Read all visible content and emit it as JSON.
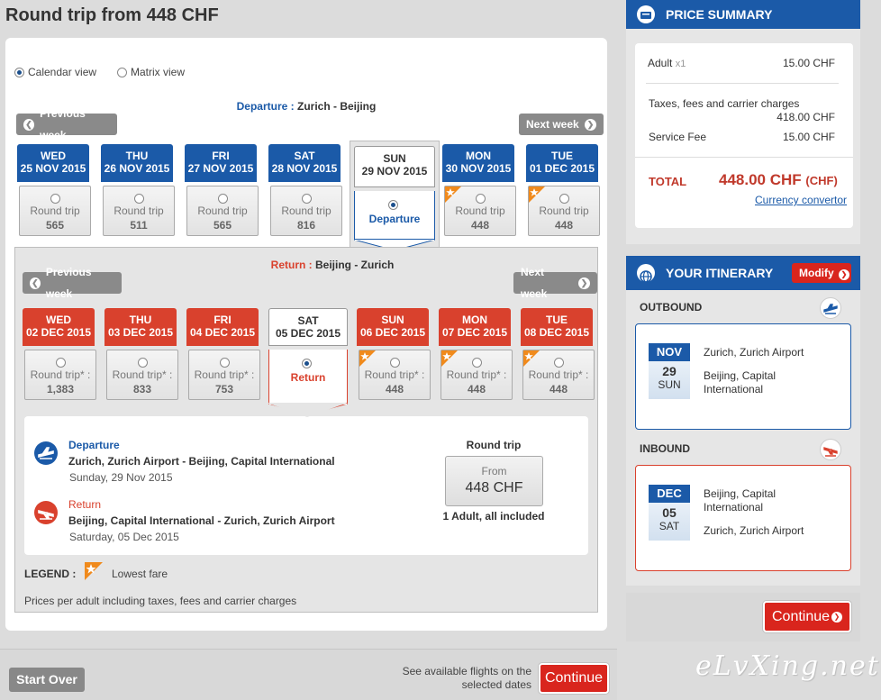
{
  "page_title": "Round trip from 448 CHF",
  "views": {
    "calendar": "Calendar view",
    "matrix": "Matrix view"
  },
  "departure": {
    "label": "Departure :",
    "route": "Zurich - Beijing",
    "prev": "Previous week",
    "next": "Next week",
    "days": [
      {
        "dow": "WED",
        "date": "25 NOV 2015",
        "type": "Round trip",
        "price": "565",
        "star": false
      },
      {
        "dow": "THU",
        "date": "26 NOV 2015",
        "type": "Round trip",
        "price": "511",
        "star": false
      },
      {
        "dow": "FRI",
        "date": "27 NOV 2015",
        "type": "Round trip",
        "price": "565",
        "star": false
      },
      {
        "dow": "SAT",
        "date": "28 NOV 2015",
        "type": "Round trip",
        "price": "816",
        "star": false
      },
      {
        "dow": "SUN",
        "date": "29 NOV 2015",
        "type": "Departure",
        "price": "",
        "star": false,
        "selected": true
      },
      {
        "dow": "MON",
        "date": "30 NOV 2015",
        "type": "Round trip",
        "price": "448",
        "star": true
      },
      {
        "dow": "TUE",
        "date": "01 DEC 2015",
        "type": "Round trip",
        "price": "448",
        "star": true
      }
    ]
  },
  "return": {
    "label": "Return :",
    "route": "Beijing - Zurich",
    "prev": "Previous week",
    "next": "Next week",
    "days": [
      {
        "dow": "WED",
        "date": "02 DEC 2015",
        "type": "Round trip* :",
        "price": "1,383",
        "star": false
      },
      {
        "dow": "THU",
        "date": "03 DEC 2015",
        "type": "Round trip* :",
        "price": "833",
        "star": false
      },
      {
        "dow": "FRI",
        "date": "04 DEC 2015",
        "type": "Round trip* :",
        "price": "753",
        "star": false
      },
      {
        "dow": "SAT",
        "date": "05 DEC 2015",
        "type": "Return",
        "price": "",
        "star": false,
        "selected": true
      },
      {
        "dow": "SUN",
        "date": "06 DEC 2015",
        "type": "Round trip* :",
        "price": "448",
        "star": true
      },
      {
        "dow": "MON",
        "date": "07 DEC 2015",
        "type": "Round trip* :",
        "price": "448",
        "star": true
      },
      {
        "dow": "TUE",
        "date": "08 DEC 2015",
        "type": "Round trip* :",
        "price": "448",
        "star": true
      }
    ]
  },
  "summary": {
    "dep_title": "Departure",
    "dep_route": "Zurich, Zurich Airport - Beijing, Capital International",
    "dep_date": "Sunday, 29 Nov 2015",
    "ret_title": "Return",
    "ret_route": "Beijing, Capital International - Zurich, Zurich Airport",
    "ret_date": "Saturday, 05 Dec 2015",
    "fare_type": "Round trip",
    "from_label": "From",
    "from_price": "448 CHF",
    "pax_note": "1 Adult, all included"
  },
  "legend": {
    "label": "LEGEND :",
    "lowest": "Lowest fare",
    "note": "Prices per adult including taxes, fees and carrier charges"
  },
  "bottom": {
    "start_over": "Start Over",
    "see_flights": "See available flights on the selected dates",
    "continue": "Continue"
  },
  "price_summary": {
    "title": "PRICE SUMMARY",
    "adult_label": "Adult",
    "adult_mult": "x1",
    "adult_val": "15.00 CHF",
    "taxes_label": "Taxes, fees and carrier charges",
    "taxes_val": "418.00 CHF",
    "fee_label": "Service Fee",
    "fee_val": "15.00 CHF",
    "total_label": "TOTAL",
    "total_val": "448.00 CHF",
    "total_cur": "(CHF)",
    "convertor": "Currency convertor"
  },
  "itinerary": {
    "title": "YOUR ITINERARY",
    "modify": "Modify",
    "outbound": {
      "label": "OUTBOUND",
      "month": "NOV",
      "day": "29",
      "dow": "SUN",
      "from": "Zurich, Zurich Airport",
      "to": "Beijing, Capital International"
    },
    "inbound": {
      "label": "INBOUND",
      "month": "DEC",
      "day": "05",
      "dow": "SAT",
      "from": "Beijing, Capital International",
      "to": "Zurich, Zurich Airport"
    },
    "continue": "Continue"
  },
  "watermark": "eLvXing.net",
  "colors": {
    "blue": "#1b5aa8",
    "red": "#d9412d",
    "continue_red": "#d9251d"
  }
}
